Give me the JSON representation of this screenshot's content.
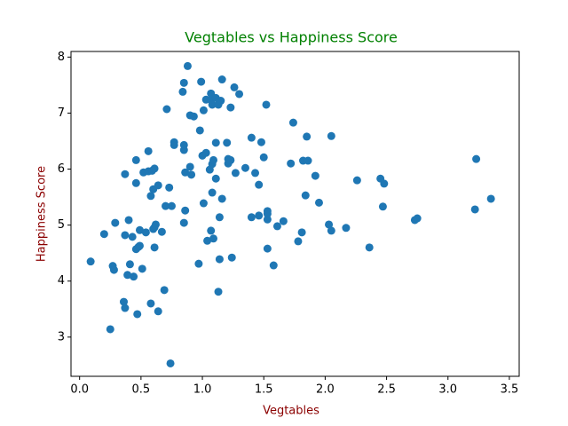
{
  "chart_data": {
    "type": "scatter",
    "title": "Vegtables vs Happiness Score",
    "xlabel": "Vegtables",
    "ylabel": "Happiness Score",
    "color": "#1f77b4",
    "title_color": "#008000",
    "label_color": "#8b0000",
    "x": [
      0.09,
      0.2,
      0.25,
      0.27,
      0.28,
      0.29,
      0.36,
      0.37,
      0.37,
      0.37,
      0.39,
      0.4,
      0.41,
      0.43,
      0.44,
      0.46,
      0.46,
      0.46,
      0.47,
      0.48,
      0.49,
      0.49,
      0.51,
      0.52,
      0.54,
      0.56,
      0.56,
      0.58,
      0.58,
      0.59,
      0.6,
      0.6,
      0.61,
      0.61,
      0.62,
      0.61,
      0.64,
      0.64,
      0.67,
      0.69,
      0.7,
      0.71,
      0.73,
      0.74,
      0.75,
      0.77,
      0.77,
      0.84,
      0.85,
      0.85,
      0.85,
      0.85,
      0.86,
      0.86,
      0.88,
      0.9,
      0.9,
      0.91,
      0.93,
      0.97,
      0.98,
      0.99,
      1.0,
      1.01,
      1.01,
      1.03,
      1.03,
      1.04,
      1.06,
      1.07,
      1.07,
      1.07,
      1.08,
      1.08,
      1.08,
      1.09,
      1.09,
      1.11,
      1.11,
      1.11,
      1.13,
      1.13,
      1.14,
      1.14,
      1.15,
      1.16,
      1.16,
      1.2,
      1.21,
      1.21,
      1.23,
      1.23,
      1.24,
      1.26,
      1.27,
      1.3,
      1.35,
      1.4,
      1.4,
      1.43,
      1.46,
      1.46,
      1.48,
      1.5,
      1.52,
      1.53,
      1.53,
      1.53,
      1.53,
      1.58,
      1.61,
      1.66,
      1.72,
      1.74,
      1.78,
      1.81,
      1.82,
      1.84,
      1.85,
      1.86,
      1.92,
      1.95,
      2.03,
      2.05,
      2.05,
      2.17,
      2.26,
      2.36,
      2.45,
      2.47,
      2.48,
      2.73,
      2.75,
      3.22,
      3.23,
      3.35
    ],
    "y": [
      4.35,
      4.84,
      3.14,
      4.27,
      4.2,
      5.04,
      3.63,
      3.52,
      5.91,
      4.82,
      4.11,
      5.09,
      4.3,
      4.79,
      4.08,
      6.16,
      4.57,
      5.75,
      3.41,
      4.61,
      4.63,
      4.91,
      4.22,
      5.94,
      4.87,
      6.32,
      5.96,
      5.52,
      3.6,
      5.97,
      4.93,
      5.64,
      6.01,
      4.96,
      5.01,
      4.6,
      3.46,
      5.71,
      4.88,
      3.84,
      5.34,
      7.07,
      5.67,
      2.53,
      5.34,
      6.48,
      6.43,
      7.38,
      7.54,
      5.04,
      6.34,
      6.43,
      5.26,
      5.94,
      7.84,
      6.04,
      6.96,
      5.9,
      6.94,
      4.31,
      6.69,
      7.56,
      6.24,
      7.05,
      5.39,
      7.24,
      6.29,
      4.72,
      5.99,
      7.35,
      7.24,
      4.9,
      7.15,
      6.09,
      5.58,
      4.76,
      6.16,
      6.47,
      7.27,
      5.83,
      3.81,
      7.15,
      4.39,
      5.14,
      7.22,
      5.47,
      7.6,
      6.47,
      6.1,
      6.18,
      7.1,
      6.16,
      4.42,
      7.46,
      5.93,
      7.34,
      6.02,
      5.14,
      6.56,
      5.93,
      5.72,
      5.17,
      6.48,
      6.21,
      7.15,
      5.1,
      5.25,
      5.2,
      4.58,
      4.28,
      4.98,
      5.07,
      6.1,
      6.83,
      4.71,
      4.87,
      6.15,
      5.53,
      6.58,
      6.15,
      5.88,
      5.4,
      5.01,
      4.9,
      6.59,
      4.95,
      5.8,
      4.6,
      5.83,
      5.33,
      5.74,
      5.09,
      5.12,
      5.28,
      6.18,
      5.47
    ],
    "xlim": [
      -0.07,
      3.58
    ],
    "ylim": [
      2.3,
      8.1
    ],
    "xticks": [
      {
        "value": 0,
        "label": "0.0"
      },
      0.5,
      {
        "value": 1,
        "label": "1.0"
      },
      1.5,
      {
        "value": 2,
        "label": "2.0"
      },
      2.5,
      {
        "value": 3,
        "label": "3.0"
      },
      3.5
    ],
    "yticks": [
      3,
      4,
      5,
      6,
      7,
      8
    ]
  }
}
